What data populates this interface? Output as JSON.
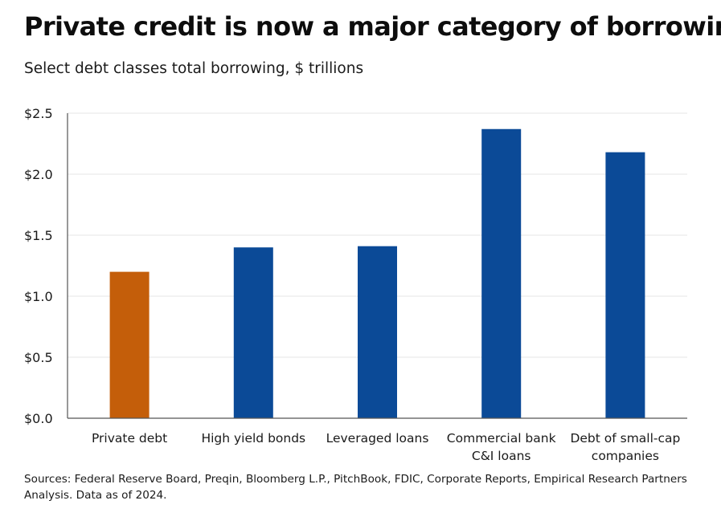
{
  "header": {
    "title": "Private credit is now a major category of borrowing",
    "subtitle": "Select debt classes total borrowing, $ trillions"
  },
  "footer": {
    "source": "Sources: Federal Reserve Board, Preqin, Bloomberg L.P., PitchBook, FDIC, Corporate Reports, Empirical Research Partners Analysis. Data as of 2024."
  },
  "colors": {
    "highlight": "#c45e0a",
    "primary": "#0b4a97",
    "grid": "#e4e4e4",
    "axis": "#555555"
  },
  "chart_data": {
    "type": "bar",
    "title": "Private credit is now a major category of borrowing",
    "subtitle": "Select debt classes total borrowing, $ trillions",
    "xlabel": "",
    "ylabel": "",
    "categories": [
      [
        "Private debt"
      ],
      [
        "High yield bonds"
      ],
      [
        "Leveraged loans"
      ],
      [
        "Commercial bank",
        "C&I loans"
      ],
      [
        "Debt of small-cap",
        "companies"
      ]
    ],
    "values": [
      1.2,
      1.4,
      1.41,
      2.37,
      2.18
    ],
    "highlight_index": 0,
    "ylim": [
      0,
      2.5
    ],
    "yticks": [
      0,
      0.5,
      1.0,
      1.5,
      2.0,
      2.5
    ],
    "ytick_labels": [
      "$0.0",
      "$0.5",
      "$1.0",
      "$1.5",
      "$2.0",
      "$2.5"
    ],
    "grid": true,
    "legend": "none"
  }
}
